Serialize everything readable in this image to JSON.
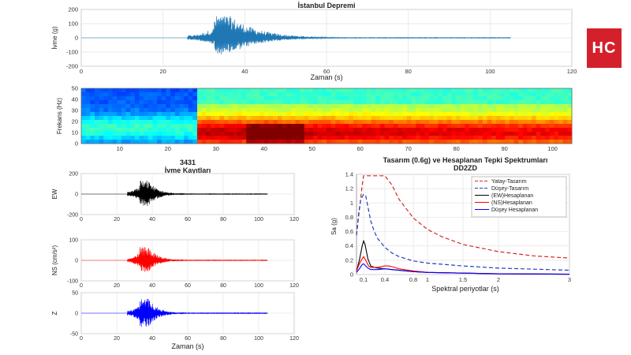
{
  "logo": {
    "text": "HC",
    "color": "#d4202a"
  },
  "chart_data": [
    {
      "id": "istanbul",
      "type": "line",
      "title": "İstanbul Depremi",
      "xlabel": "Zaman (s)",
      "ylabel": "İvme (g)",
      "xlim": [
        0,
        120
      ],
      "ylim": [
        -200,
        200
      ],
      "xticks": [
        "0",
        "20",
        "40",
        "60",
        "80",
        "100",
        "120"
      ],
      "yticks": [
        "200",
        "100",
        "0",
        "-100",
        "-200"
      ],
      "grid": true,
      "color": "#1f77b4",
      "signal": {
        "start": 26,
        "end": 105,
        "peak_time": 34.5,
        "peak": 155,
        "trough": -115
      }
    },
    {
      "id": "spectrogram",
      "type": "heatmap",
      "xlabel": "",
      "ylabel": "Frekans (Hz)",
      "xlim": [
        2,
        104
      ],
      "ylim": [
        0,
        50
      ],
      "xticks": [
        "10",
        "20",
        "30",
        "40",
        "50",
        "60",
        "70",
        "80",
        "90",
        "100"
      ],
      "yticks": [
        "50",
        "40",
        "30",
        "20",
        "10",
        "0"
      ],
      "onset_time": 26
    },
    {
      "id": "kayit",
      "type": "line",
      "title": "3431",
      "subtitle": "İvme Kayıtları",
      "xlabel": "Zaman (s)",
      "xlim": [
        0,
        120
      ],
      "xticks": [
        "0",
        "20",
        "40",
        "60",
        "80",
        "100",
        "120"
      ],
      "grid": true,
      "series": [
        {
          "name": "EW",
          "ylabel": "EW",
          "color": "#000000",
          "ylim": [
            -200,
            200
          ],
          "yticks": [
            "200",
            "0",
            "-200"
          ],
          "peak": 140,
          "trough": -120
        },
        {
          "name": "NS",
          "ylabel": "NS (cm/s²)",
          "color": "#ff0000",
          "ylim": [
            -100,
            100
          ],
          "yticks": [
            "100",
            "0",
            "-100"
          ],
          "peak": 70,
          "trough": -60
        },
        {
          "name": "Z",
          "ylabel": "Z",
          "color": "#0000ff",
          "ylim": [
            -50,
            50
          ],
          "yticks": [
            "50",
            "0",
            "-50"
          ],
          "peak": 38,
          "trough": -36
        }
      ],
      "signal": {
        "start": 26,
        "end": 105,
        "peak_time": 35
      }
    },
    {
      "id": "spektrum",
      "type": "line",
      "title": "Tasarım (0.6g) ve Hesaplanan Tepki Spektrumları",
      "subtitle": "DD2ZD",
      "xlabel": "Spektral periyotlar (s)",
      "ylabel": "Sa (g)",
      "xlim": [
        0,
        3
      ],
      "ylim": [
        0,
        1.4
      ],
      "xticks": [
        "0.1",
        "0.4",
        "0.8",
        "1",
        "1.5",
        "2",
        "3"
      ],
      "xtick_values": [
        0.1,
        0.4,
        0.8,
        1,
        1.5,
        2,
        3
      ],
      "yticks": [
        "1.4",
        "1.2",
        "1",
        "0.8",
        "0.6",
        "0.4",
        "0.2",
        "0"
      ],
      "legend_position": "top-right",
      "series": [
        {
          "name": "Yatay-Tasarım",
          "color": "#d62728",
          "dash": true,
          "x": [
            0,
            0.04,
            0.08,
            0.1,
            0.12,
            0.2,
            0.3,
            0.4,
            0.5,
            0.6,
            0.8,
            1,
            1.2,
            1.5,
            2,
            2.5,
            3
          ],
          "y": [
            0.55,
            0.9,
            1.25,
            1.38,
            1.38,
            1.38,
            1.38,
            1.38,
            1.25,
            1.05,
            0.79,
            0.63,
            0.53,
            0.42,
            0.32,
            0.26,
            0.23
          ]
        },
        {
          "name": "Düşey-Tasarım",
          "color": "#1f3fbf",
          "dash": true,
          "x": [
            0,
            0.03,
            0.06,
            0.1,
            0.13,
            0.16,
            0.2,
            0.25,
            0.3,
            0.4,
            0.5,
            0.6,
            0.8,
            1,
            1.5,
            2,
            3
          ],
          "y": [
            0.55,
            0.85,
            1.05,
            1.12,
            1.1,
            0.95,
            0.75,
            0.6,
            0.5,
            0.38,
            0.3,
            0.25,
            0.19,
            0.16,
            0.12,
            0.09,
            0.06
          ]
        },
        {
          "name": "(EW)Hesaplanan",
          "color": "#000000",
          "dash": false,
          "x": [
            0,
            0.04,
            0.08,
            0.1,
            0.12,
            0.16,
            0.2,
            0.25,
            0.3,
            0.4,
            0.5,
            0.6,
            0.8,
            1,
            1.5,
            2,
            3
          ],
          "y": [
            0.05,
            0.2,
            0.4,
            0.47,
            0.42,
            0.22,
            0.12,
            0.1,
            0.09,
            0.08,
            0.07,
            0.06,
            0.04,
            0.03,
            0.02,
            0.01,
            0.005
          ]
        },
        {
          "name": "(NS)Hesaplanan",
          "color": "#ff0000",
          "dash": false,
          "x": [
            0,
            0.04,
            0.08,
            0.1,
            0.13,
            0.17,
            0.2,
            0.3,
            0.4,
            0.45,
            0.5,
            0.6,
            0.8,
            1,
            1.5,
            2,
            3
          ],
          "y": [
            0.05,
            0.15,
            0.22,
            0.25,
            0.2,
            0.12,
            0.1,
            0.1,
            0.12,
            0.12,
            0.11,
            0.08,
            0.05,
            0.03,
            0.02,
            0.01,
            0.005
          ]
        },
        {
          "name": "Düşey Hesaplanan",
          "color": "#0000ff",
          "dash": false,
          "x": [
            0,
            0.04,
            0.08,
            0.1,
            0.12,
            0.16,
            0.2,
            0.3,
            0.4,
            0.5,
            0.6,
            0.8,
            1,
            1.5,
            2,
            3
          ],
          "y": [
            0.03,
            0.08,
            0.14,
            0.15,
            0.13,
            0.09,
            0.07,
            0.07,
            0.08,
            0.07,
            0.06,
            0.04,
            0.03,
            0.02,
            0.01,
            0.005
          ]
        }
      ]
    }
  ]
}
